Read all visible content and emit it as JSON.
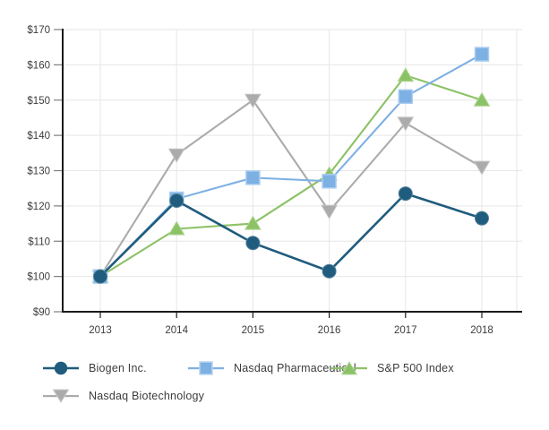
{
  "chart_data": {
    "type": "line",
    "title": "",
    "xlabel": "",
    "ylabel": "",
    "categories": [
      "2013",
      "2014",
      "2015",
      "2016",
      "2017",
      "2018"
    ],
    "series": [
      {
        "name": "Biogen Inc.",
        "marker": "circle",
        "color": "#1f5c7d",
        "marker_stroke": "#517f99",
        "values": [
          100,
          121.5,
          109.5,
          101.5,
          123.5,
          116.5
        ]
      },
      {
        "name": "Nasdaq Pharmaceutical",
        "marker": "square",
        "color": "#7db0e3",
        "marker_stroke": "#a9cdf0",
        "values": [
          100,
          122,
          128,
          127,
          151,
          163
        ]
      },
      {
        "name": "S&P 500 Index",
        "marker": "triangle-up",
        "color": "#8cc266",
        "marker_stroke": "#aed490",
        "values": [
          100,
          113.5,
          115,
          129,
          157,
          150
        ]
      },
      {
        "name": "Nasdaq Biotechnology",
        "marker": "triangle-down",
        "color": "#ababab",
        "marker_stroke": "#c2c2c2",
        "values": [
          100,
          134.5,
          150,
          118.5,
          143.5,
          131
        ]
      }
    ],
    "ylim": [
      90,
      170
    ],
    "y_tick_step": 10,
    "y_tick_labels": [
      "$90",
      "$100",
      "$110",
      "$120",
      "$130",
      "$140",
      "$150",
      "$160",
      "$170"
    ],
    "grid": true,
    "legend_position": "bottom",
    "colors": {
      "axis": "#1a1a1a",
      "gridline": "#e6e6e6",
      "tick": "#7f7f7f",
      "tick_label": "#3c3c3c"
    }
  }
}
